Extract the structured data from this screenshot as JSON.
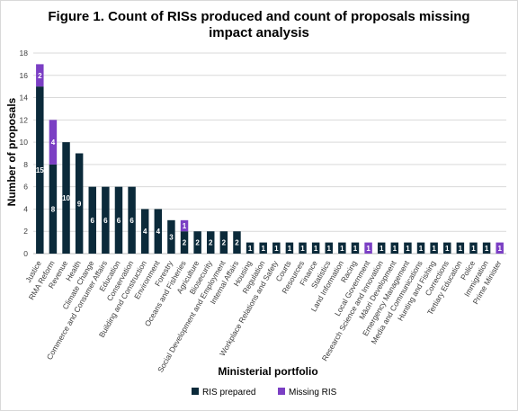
{
  "chart_data": {
    "type": "bar",
    "stacked": true,
    "title_lines": [
      "Figure 1. Count of RISs produced and count of proposals missing",
      "impact analysis"
    ],
    "xlabel": "Ministerial portfolio",
    "ylabel": "Number of proposals",
    "ylim": [
      0,
      18
    ],
    "yticks": [
      0,
      2,
      4,
      6,
      8,
      10,
      12,
      14,
      16,
      18
    ],
    "grid": true,
    "legend_position": "bottom",
    "categories": [
      "Justice",
      "RMA Reform",
      "Revenue",
      "Health",
      "Climate Change",
      "Commerce and Consumer Affairs",
      "Education",
      "Conservation",
      "Building and Construction",
      "Environment",
      "Forestry",
      "Oceans and Fisheries",
      "Agriculture",
      "Biosecurity",
      "Social Development and Employment",
      "Internal Affairs",
      "Housing",
      "Regulation",
      "Workplace Relations and Safety",
      "Courts",
      "Resources",
      "Finance",
      "Statistics",
      "Land Information",
      "Racing",
      "Local Government",
      "Research Science and Innovation",
      "Māori Development",
      "Emergency Management",
      "Media and Communications",
      "Hunting and Fishing",
      "Corrections",
      "Tertiary Education",
      "Police",
      "Immigration",
      "Prime Minister"
    ],
    "series": [
      {
        "name": "RIS prepared",
        "color": "#0b2a3a",
        "values": [
          15,
          8,
          10,
          9,
          6,
          6,
          6,
          6,
          4,
          4,
          3,
          2,
          2,
          2,
          2,
          2,
          1,
          1,
          1,
          1,
          1,
          1,
          1,
          1,
          1,
          0,
          1,
          1,
          1,
          1,
          1,
          1,
          1,
          1,
          1,
          0
        ]
      },
      {
        "name": "Missing RIS",
        "color": "#7b3fc4",
        "values": [
          2,
          4,
          0,
          0,
          0,
          0,
          0,
          0,
          0,
          0,
          0,
          1,
          0,
          0,
          0,
          0,
          0,
          0,
          0,
          0,
          0,
          0,
          0,
          0,
          0,
          1,
          0,
          0,
          0,
          0,
          0,
          0,
          0,
          0,
          0,
          1
        ]
      }
    ]
  }
}
